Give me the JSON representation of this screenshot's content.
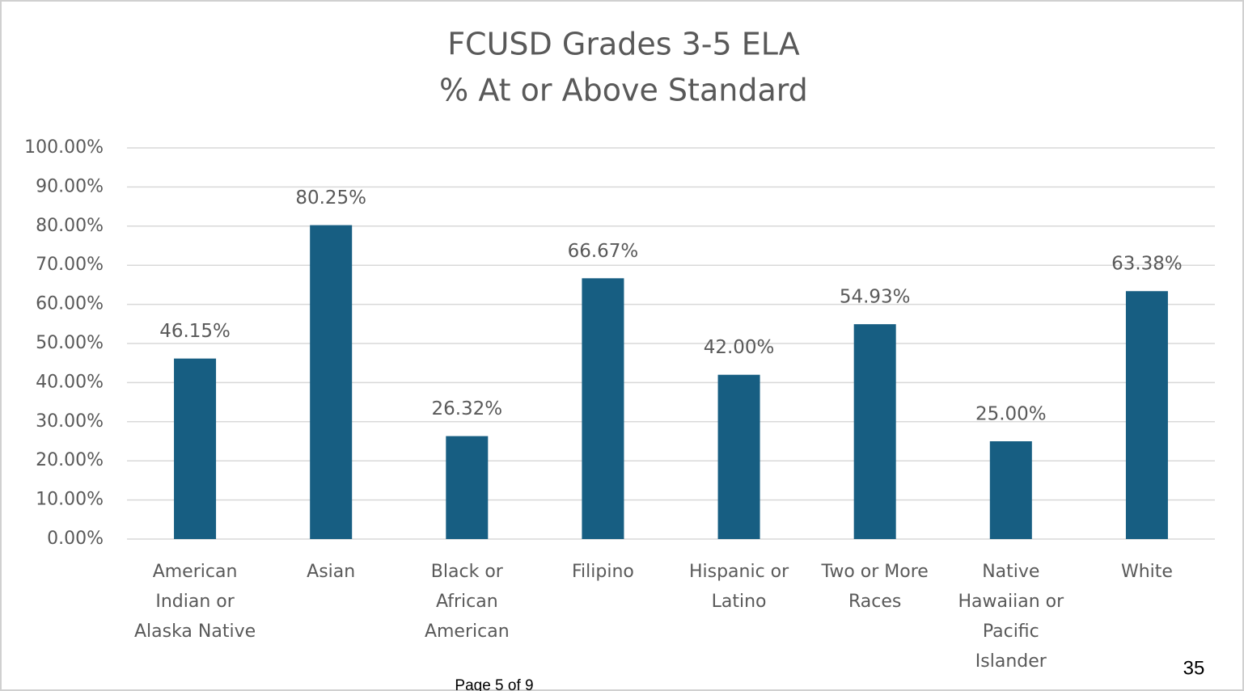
{
  "chart_data": {
    "type": "bar",
    "title": "FCUSD Grades 3-5 ELA",
    "subtitle": "% At or Above Standard",
    "categories": [
      "American Indian or Alaska Native",
      "Asian",
      "Black or African American",
      "Filipino",
      "Hispanic or Latino",
      "Two or More Races",
      "Native Hawaiian or Pacific Islander",
      "White"
    ],
    "values": [
      46.15,
      80.25,
      26.32,
      66.67,
      42.0,
      54.93,
      25.0,
      63.38
    ],
    "value_labels": [
      "46.15%",
      "80.25%",
      "26.32%",
      "66.67%",
      "42.00%",
      "54.93%",
      "25.00%",
      "63.38%"
    ],
    "color": "#175e82",
    "ylim": [
      0,
      100
    ],
    "yticks": [
      {
        "value": 0,
        "label": "0.00%"
      },
      {
        "value": 10,
        "label": "10.00%"
      },
      {
        "value": 20,
        "label": "20.00%"
      },
      {
        "value": 30,
        "label": "30.00%"
      },
      {
        "value": 40,
        "label": "40.00%"
      },
      {
        "value": 50,
        "label": "50.00%"
      },
      {
        "value": 60,
        "label": "60.00%"
      },
      {
        "value": 70,
        "label": "70.00%"
      },
      {
        "value": 80,
        "label": "80.00%"
      },
      {
        "value": 90,
        "label": "90.00%"
      },
      {
        "value": 100,
        "label": "100.00%"
      }
    ],
    "grid": true
  },
  "page_number": "35",
  "footer": "Page 5 of 9"
}
